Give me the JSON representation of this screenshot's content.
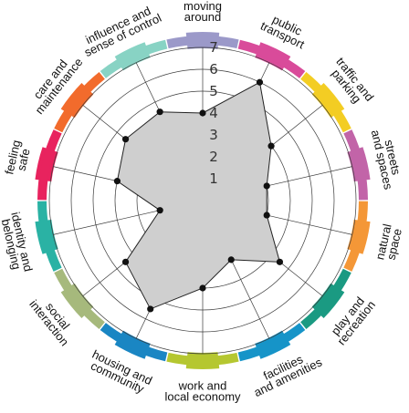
{
  "chart_data": {
    "type": "radar",
    "scale_max": 7,
    "ticks": [
      "1",
      "2",
      "3",
      "4",
      "5",
      "6",
      "7"
    ],
    "grid": true,
    "categories": [
      {
        "lines": [
          "moving",
          "around"
        ],
        "value": 4,
        "color": "#9b99c9"
      },
      {
        "lines": [
          "public",
          "transport"
        ],
        "value": 6,
        "color": "#d94b9a"
      },
      {
        "lines": [
          "traffic and",
          "parking"
        ],
        "value": 4,
        "color": "#f3cd23"
      },
      {
        "lines": [
          "streets",
          "and spaces"
        ],
        "value": 3,
        "color": "#c264a8"
      },
      {
        "lines": [
          "natural",
          "space"
        ],
        "value": 3,
        "color": "#f49737"
      },
      {
        "lines": [
          "play and",
          "recreation"
        ],
        "value": 4.5,
        "color": "#1a9a82"
      },
      {
        "lines": [
          "facilities",
          "and amenities"
        ],
        "value": 3,
        "color": "#1694c8"
      },
      {
        "lines": [
          "work and",
          "local economy"
        ],
        "value": 4,
        "color": "#b5c730"
      },
      {
        "lines": [
          "housing and",
          "community"
        ],
        "value": 5.5,
        "color": "#1a86c3"
      },
      {
        "lines": [
          "social",
          "interaction"
        ],
        "value": 4.5,
        "color": "#a6b97c"
      },
      {
        "lines": [
          "identity and",
          "belonging"
        ],
        "value": 2,
        "color": "#2ab2a4"
      },
      {
        "lines": [
          "feeling",
          "safe"
        ],
        "value": 4,
        "color": "#e8235e"
      },
      {
        "lines": [
          "care and",
          "maintenance"
        ],
        "value": 4.5,
        "color": "#f26b2c"
      },
      {
        "lines": [
          "influence and",
          "sense of control"
        ],
        "value": 4.5,
        "color": "#88d3c4"
      }
    ]
  }
}
